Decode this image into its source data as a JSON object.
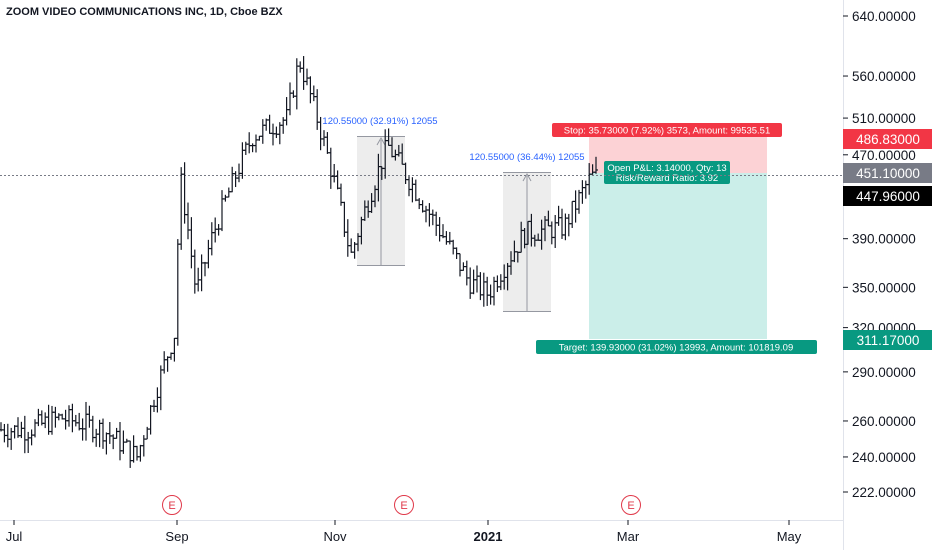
{
  "header": {
    "title": "ZOOM VIDEO COMMUNICATIONS INC, 1D, Cboe BZX"
  },
  "colors": {
    "bar": "#131722",
    "accent_blue": "#2962ff",
    "stop_red": "#f23645",
    "stop_fill": "#fcd2d5",
    "target_green": "#089981",
    "target_fill": "#cbeee9",
    "price_gray": "#787b86",
    "earnings": "#e0394a"
  },
  "chart_data": {
    "type": "bar",
    "subtype": "ohlc-daily",
    "title": "ZOOM VIDEO COMMUNICATIONS INC, 1D, Cboe BZX",
    "y_axis": {
      "scale": "log",
      "ticks": [
        "640.00000",
        "560.00000",
        "510.00000",
        "470.00000",
        "390.00000",
        "350.00000",
        "320.00000",
        "290.00000",
        "260.00000",
        "240.00000",
        "222.00000"
      ],
      "price_labels": [
        {
          "text": "486.83000",
          "role": "stop"
        },
        {
          "text": "451.10000",
          "role": "entry"
        },
        {
          "text": "447.96000",
          "role": "last"
        },
        {
          "text": "311.17000",
          "role": "target"
        }
      ]
    },
    "x_axis": {
      "ticks": [
        "Jul",
        "Sep",
        "Nov",
        "2021",
        "Mar",
        "May"
      ],
      "bold": [
        "2021"
      ]
    },
    "series_close_approx": [
      {
        "date": "2020-07-01",
        "close": 255
      },
      {
        "date": "2020-07-15",
        "close": 262
      },
      {
        "date": "2020-08-01",
        "close": 255
      },
      {
        "date": "2020-08-15",
        "close": 240
      },
      {
        "date": "2020-08-31",
        "close": 320
      },
      {
        "date": "2020-09-01",
        "close": 455
      },
      {
        "date": "2020-09-08",
        "close": 345
      },
      {
        "date": "2020-09-15",
        "close": 395
      },
      {
        "date": "2020-10-01",
        "close": 490
      },
      {
        "date": "2020-10-15",
        "close": 510
      },
      {
        "date": "2020-10-20",
        "close": 580
      },
      {
        "date": "2020-11-02",
        "close": 455
      },
      {
        "date": "2020-11-10",
        "close": 375
      },
      {
        "date": "2020-11-25",
        "close": 480
      },
      {
        "date": "2020-12-10",
        "close": 420
      },
      {
        "date": "2020-12-28",
        "close": 355
      },
      {
        "date": "2021-01-05",
        "close": 345
      },
      {
        "date": "2021-01-20",
        "close": 395
      },
      {
        "date": "2021-02-05",
        "close": 400
      },
      {
        "date": "2021-02-16",
        "close": 447.96
      }
    ],
    "measures": [
      {
        "label": "120.55000 (32.91%) 12055"
      },
      {
        "label": "120.55000 (36.44%) 12055"
      }
    ],
    "position": {
      "stop_label": "Stop: 35.73000 (7.92%) 3573, Amount: 99535.51",
      "pnl_label": "Open P&L: 3.14000, Qty: 13",
      "rr_label": "Risk/Reward Ratio: 3.92",
      "target_label": "Target: 139.93000 (31.02%) 13993, Amount: 101819.09"
    },
    "earnings_markers": [
      "E",
      "E",
      "E"
    ]
  }
}
